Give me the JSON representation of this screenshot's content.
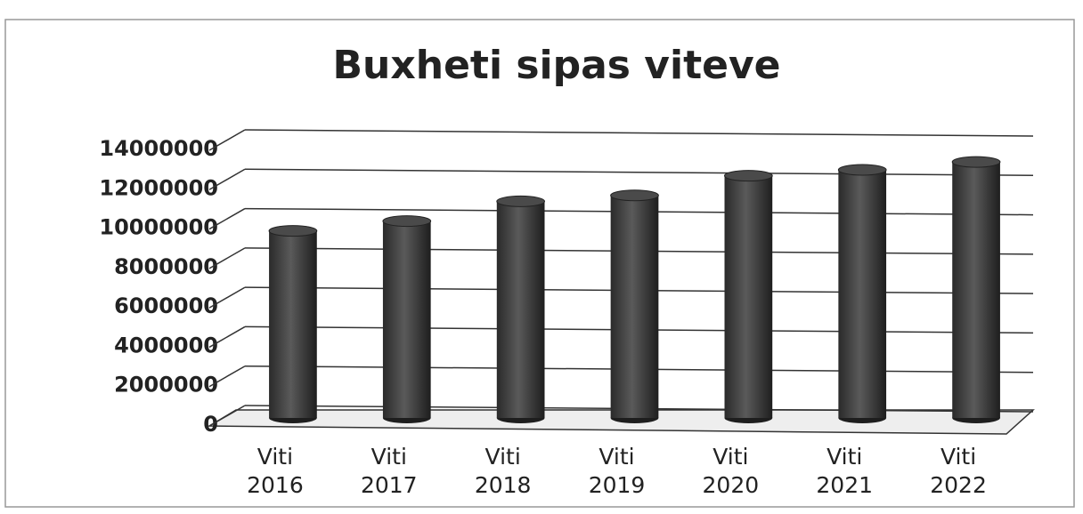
{
  "chart_data": {
    "type": "bar",
    "title": "Buxheti sipas  viteve",
    "categories": [
      "Viti 2016",
      "Viti 2017",
      "Viti 2018",
      "Viti 2019",
      "Viti 2020",
      "Viti 2021",
      "Viti 2022"
    ],
    "values": [
      9500000,
      10000000,
      11000000,
      11300000,
      12300000,
      12600000,
      13000000
    ],
    "color": "#3a3a3a",
    "ylim": [
      0,
      14000000
    ],
    "yticks": [
      0,
      2000000,
      4000000,
      6000000,
      8000000,
      10000000,
      12000000,
      14000000
    ],
    "grid": true
  }
}
